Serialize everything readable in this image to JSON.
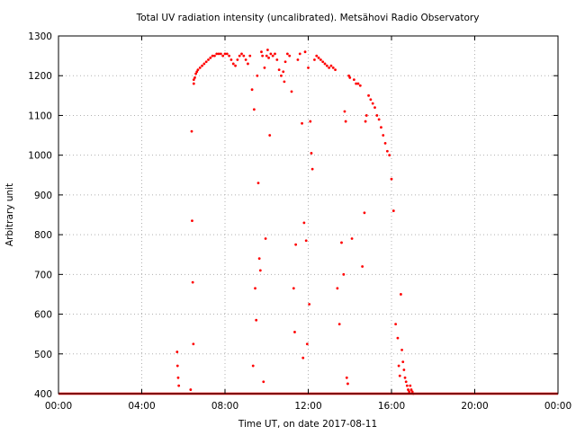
{
  "chart_data": {
    "type": "scatter",
    "title": "Total UV radiation intensity (uncalibrated). Metsähovi Radio Observatory",
    "xlabel": "Time UT, on date 2017-08-11",
    "ylabel": "Arbitrary unit",
    "x_unit": "hour",
    "xlim": [
      0,
      24
    ],
    "ylim": [
      400,
      1300
    ],
    "x_ticks": [
      0,
      4,
      8,
      12,
      16,
      20,
      24
    ],
    "x_tick_labels": [
      "00:00",
      "04:00",
      "08:00",
      "12:00",
      "16:00",
      "20:00",
      "00:00"
    ],
    "y_ticks": [
      400,
      500,
      600,
      700,
      800,
      900,
      1000,
      1100,
      1200,
      1300
    ],
    "y_tick_labels": [
      "400",
      "500",
      "600",
      "700",
      "800",
      "900",
      "1000",
      "1100",
      "1200",
      "1300"
    ],
    "grid": true,
    "grid_style": "dotted",
    "legend": "none",
    "marker_color": "#ff0000",
    "series": [
      {
        "name": "",
        "baseline": {
          "x_start": 0,
          "x_end": 24,
          "y": 400
        },
        "x": [
          5.7,
          5.72,
          5.75,
          5.78,
          6.35,
          6.4,
          6.42,
          6.45,
          6.48,
          6.5,
          6.5,
          6.55,
          6.6,
          6.65,
          6.7,
          6.8,
          6.9,
          7.0,
          7.1,
          7.2,
          7.3,
          7.4,
          7.5,
          7.6,
          7.7,
          7.8,
          7.9,
          8.0,
          8.1,
          8.2,
          8.3,
          8.4,
          8.5,
          8.6,
          8.7,
          8.8,
          8.9,
          9.0,
          9.1,
          9.2,
          9.3,
          9.35,
          9.4,
          9.45,
          9.5,
          9.55,
          9.6,
          9.65,
          9.7,
          9.75,
          9.8,
          9.85,
          9.9,
          9.95,
          10.0,
          10.05,
          10.1,
          10.15,
          10.2,
          10.3,
          10.4,
          10.5,
          10.6,
          10.7,
          10.8,
          10.85,
          10.9,
          11.0,
          11.1,
          11.2,
          11.3,
          11.35,
          11.4,
          11.5,
          11.6,
          11.7,
          11.75,
          11.8,
          11.85,
          11.9,
          11.95,
          12.0,
          12.05,
          12.1,
          12.15,
          12.2,
          12.3,
          12.4,
          12.5,
          12.6,
          12.7,
          12.8,
          12.9,
          13.0,
          13.1,
          13.2,
          13.3,
          13.4,
          13.5,
          13.6,
          13.7,
          13.75,
          13.8,
          13.85,
          13.9,
          13.95,
          14.0,
          14.1,
          14.2,
          14.3,
          14.4,
          14.5,
          14.6,
          14.7,
          14.75,
          14.8,
          14.9,
          15.0,
          15.1,
          15.2,
          15.3,
          15.4,
          15.5,
          15.6,
          15.7,
          15.8,
          15.9,
          16.0,
          16.1,
          16.2,
          16.3,
          16.35,
          16.4,
          16.45,
          16.5,
          16.55,
          16.6,
          16.65,
          16.7,
          16.75,
          16.8,
          16.85,
          16.9,
          16.95,
          17.0,
          17.05
        ],
        "y": [
          505,
          470,
          440,
          420,
          410,
          1060,
          835,
          680,
          525,
          1180,
          1190,
          1195,
          1205,
          1210,
          1215,
          1220,
          1225,
          1230,
          1235,
          1240,
          1245,
          1250,
          1250,
          1255,
          1255,
          1255,
          1250,
          1255,
          1255,
          1250,
          1240,
          1230,
          1225,
          1240,
          1250,
          1255,
          1250,
          1240,
          1230,
          1250,
          1165,
          470,
          1115,
          665,
          585,
          1200,
          930,
          740,
          710,
          1260,
          1250,
          430,
          1220,
          790,
          1250,
          1265,
          1245,
          1050,
          1255,
          1250,
          1255,
          1240,
          1215,
          1200,
          1210,
          1185,
          1235,
          1255,
          1250,
          1160,
          665,
          555,
          775,
          1240,
          1255,
          1080,
          490,
          830,
          1260,
          785,
          525,
          1220,
          625,
          1085,
          1005,
          965,
          1240,
          1250,
          1245,
          1240,
          1235,
          1230,
          1225,
          1220,
          1225,
          1220,
          1215,
          665,
          575,
          780,
          700,
          1110,
          1085,
          440,
          425,
          1200,
          1195,
          790,
          1190,
          1180,
          1180,
          1175,
          720,
          855,
          1085,
          1100,
          1150,
          1140,
          1130,
          1120,
          1100,
          1090,
          1070,
          1050,
          1030,
          1010,
          1000,
          940,
          860,
          575,
          540,
          470,
          445,
          650,
          510,
          480,
          460,
          440,
          430,
          420,
          410,
          405,
          420,
          410,
          405,
          400
        ]
      }
    ]
  }
}
